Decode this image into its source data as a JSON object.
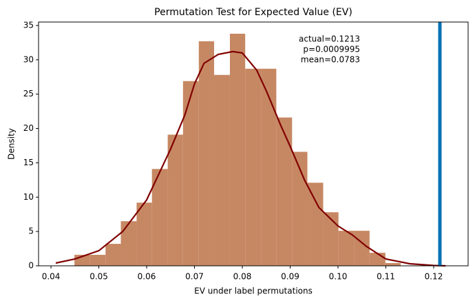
{
  "chart_data": {
    "type": "histogram",
    "title": "Permutation Test for Expected Value (EV)",
    "x_label": "EV under label permutations",
    "y_label": "Density",
    "bins": [
      0.0449,
      0.0481,
      0.0514,
      0.0546,
      0.0579,
      0.0611,
      0.0644,
      0.0676,
      0.0709,
      0.0741,
      0.0774,
      0.0806,
      0.0839,
      0.0871,
      0.0904,
      0.0936,
      0.0969,
      0.1001,
      0.1034,
      0.1066,
      0.1099,
      0.1131
    ],
    "values": [
      1.6,
      1.6,
      3.2,
      6.5,
      9.2,
      14.1,
      19.1,
      26.9,
      32.7,
      27.8,
      33.8,
      28.7,
      28.7,
      21.6,
      16.6,
      12.1,
      7.8,
      5.1,
      5.1,
      1.9,
      0.4
    ],
    "color": "#c68863",
    "kde": {
      "color": "#800000",
      "x": [
        0.041,
        0.045,
        0.05,
        0.055,
        0.06,
        0.065,
        0.068,
        0.07,
        0.072,
        0.075,
        0.078,
        0.08,
        0.083,
        0.085,
        0.088,
        0.09,
        0.093,
        0.096,
        0.1,
        0.103,
        0.106,
        0.11,
        0.115,
        0.12,
        0.1225
      ],
      "values": [
        0.4,
        1.0,
        2.2,
        5.0,
        9.6,
        17.0,
        22.0,
        26.5,
        29.5,
        30.8,
        31.2,
        31.0,
        28.5,
        25.5,
        20.5,
        17.4,
        12.5,
        8.5,
        5.8,
        4.5,
        2.8,
        1.0,
        0.3,
        0.05,
        0.0
      ]
    },
    "actual_line": {
      "value": 0.1213,
      "color": "#0072b2"
    },
    "annotation": [
      "actual=0.1213",
      "p=0.0009995",
      "mean=0.0783"
    ],
    "xlim": [
      0.0374,
      0.1272
    ],
    "ylim": [
      0,
      35.5
    ],
    "xticks": [
      0.04,
      0.05,
      0.06,
      0.07,
      0.08,
      0.09,
      {
        "value": 0.1,
        "label": "0.10"
      },
      0.11,
      0.12
    ],
    "yticks": [
      0,
      5,
      10,
      15,
      20,
      25,
      30,
      35
    ]
  }
}
